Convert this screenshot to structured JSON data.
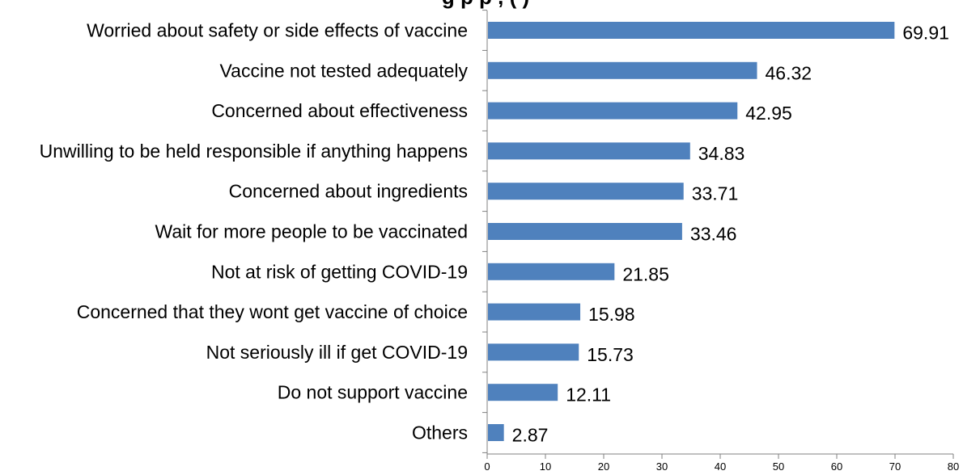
{
  "chart_data": {
    "type": "bar",
    "orientation": "horizontal",
    "title_fragment": "g     p p     ,   (     )",
    "categories": [
      "Worried about safety or side effects of vaccine",
      "Vaccine not tested adequately",
      "Concerned about effectiveness",
      "Unwilling to be held responsible if anything happens",
      "Concerned about ingredients",
      "Wait for more people to be vaccinated",
      "Not at risk of getting COVID-19",
      "Concerned that they wont get vaccine of choice",
      "Not seriously ill if get COVID-19",
      "Do not support vaccine",
      "Others"
    ],
    "values": [
      69.91,
      46.32,
      42.95,
      34.83,
      33.71,
      33.46,
      21.85,
      15.98,
      15.73,
      12.11,
      2.87
    ],
    "value_labels": [
      "69.91",
      "46.32",
      "42.95",
      "34.83",
      "33.71",
      "33.46",
      "21.85",
      "15.98",
      "15.73",
      "12.11",
      "2.87"
    ],
    "xlim": [
      0,
      80
    ],
    "xticks": [
      0,
      10,
      20,
      30,
      40,
      50,
      60,
      70,
      80
    ],
    "xtick_labels": [
      "0",
      "10",
      "20",
      "30",
      "40",
      "50",
      "60",
      "70",
      "80"
    ],
    "grid": false,
    "bar_color": "#4f81bd"
  }
}
